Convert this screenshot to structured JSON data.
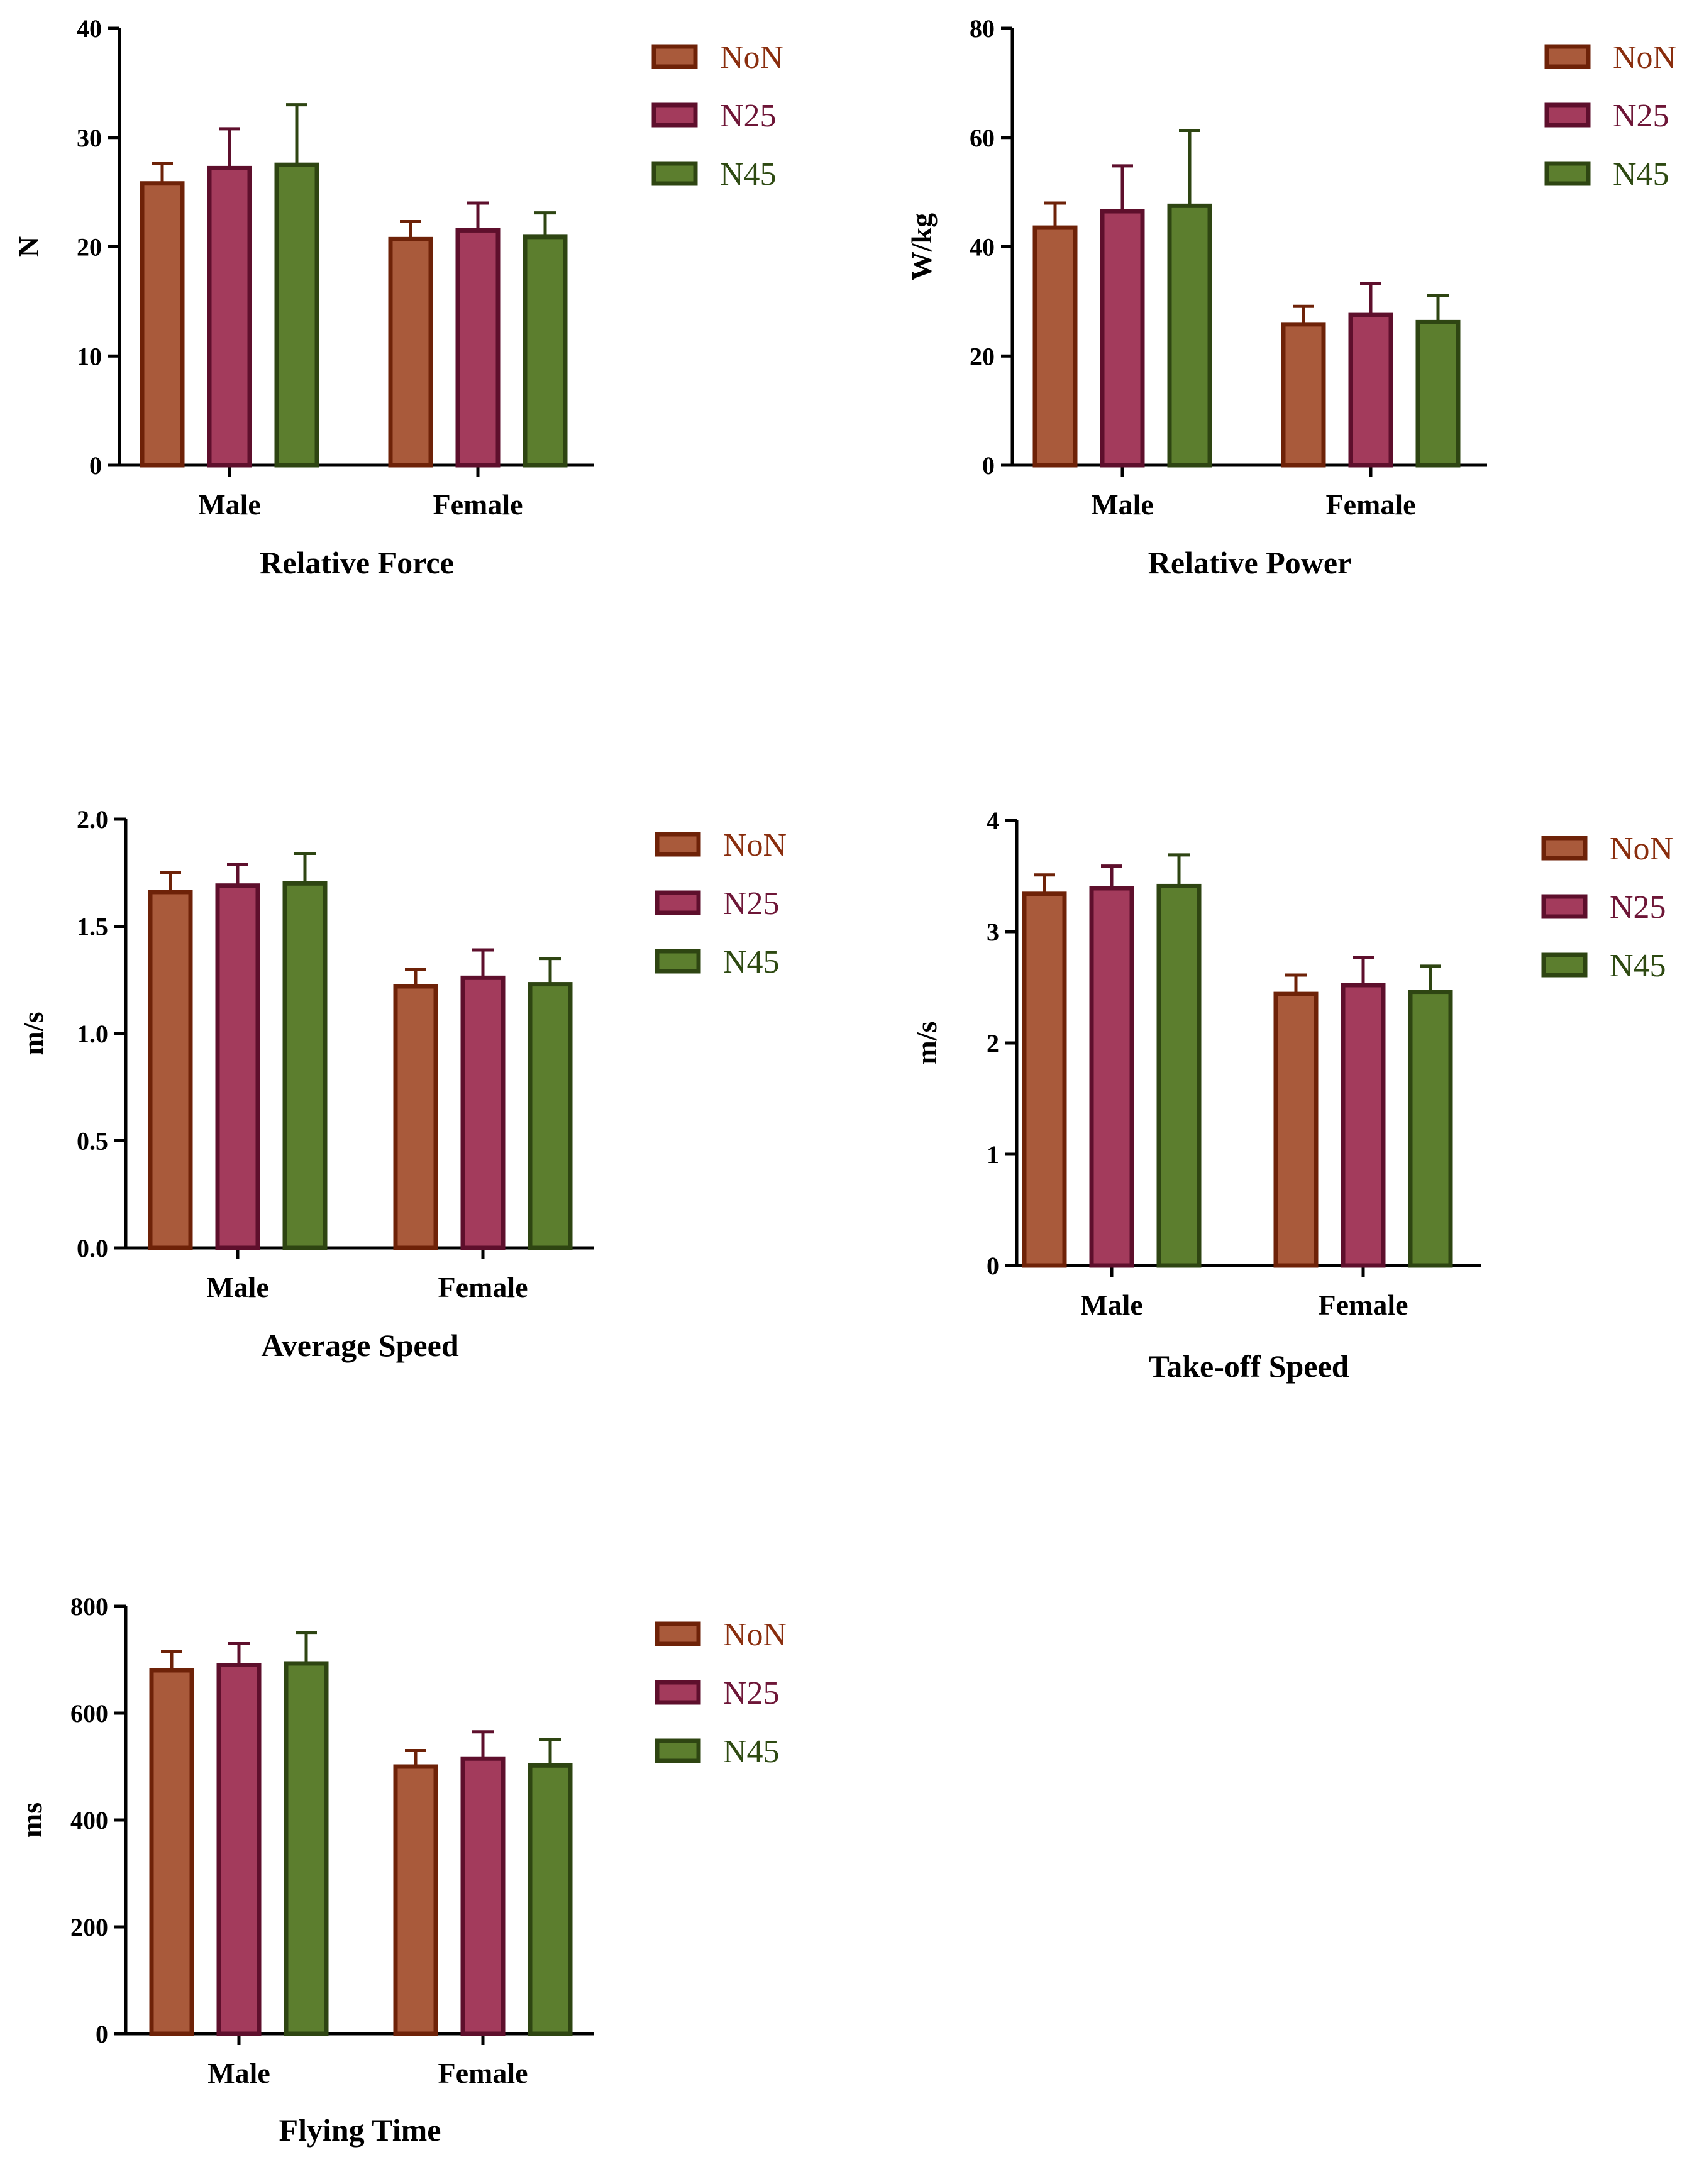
{
  "legend": [
    {
      "name": "NoN",
      "fill": "#A95A3B",
      "stroke": "#6E2208",
      "text_color": "#8A2E0E"
    },
    {
      "name": "N25",
      "fill": "#A33B5C",
      "stroke": "#5E0F2C",
      "text_color": "#6E1637"
    },
    {
      "name": "N45",
      "fill": "#5C7E2E",
      "stroke": "#2E4512",
      "text_color": "#2E4A12"
    }
  ],
  "chart_data": [
    {
      "type": "bar",
      "title": "Relative Force",
      "ylabel": "N",
      "categories": [
        "Male",
        "Female"
      ],
      "ylim": [
        0,
        40
      ],
      "yticks": [
        "0",
        "10",
        "20",
        "30",
        "40"
      ],
      "series": [
        {
          "name": "NoN",
          "values": [
            25.8,
            20.7
          ],
          "errors": [
            1.8,
            1.6
          ]
        },
        {
          "name": "N25",
          "values": [
            27.2,
            21.5
          ],
          "errors": [
            3.6,
            2.5
          ]
        },
        {
          "name": "N45",
          "values": [
            27.5,
            20.9
          ],
          "errors": [
            5.5,
            2.2
          ]
        }
      ]
    },
    {
      "type": "bar",
      "title": "Relative Power",
      "ylabel": "W/kg",
      "categories": [
        "Male",
        "Female"
      ],
      "ylim": [
        0,
        80
      ],
      "yticks": [
        "0",
        "20",
        "40",
        "60",
        "80"
      ],
      "series": [
        {
          "name": "NoN",
          "values": [
            43.5,
            25.8
          ],
          "errors": [
            4.5,
            3.3
          ]
        },
        {
          "name": "N25",
          "values": [
            46.5,
            27.5
          ],
          "errors": [
            8.3,
            5.8
          ]
        },
        {
          "name": "N45",
          "values": [
            47.5,
            26.2
          ],
          "errors": [
            13.8,
            4.9
          ]
        }
      ]
    },
    {
      "type": "bar",
      "title": "Average Speed",
      "ylabel": "m/s",
      "categories": [
        "Male",
        "Female"
      ],
      "ylim": [
        0,
        2.0
      ],
      "yticks": [
        "0.0",
        "0.5",
        "1.0",
        "1.5",
        "2.0"
      ],
      "series": [
        {
          "name": "NoN",
          "values": [
            1.66,
            1.22
          ],
          "errors": [
            0.09,
            0.08
          ]
        },
        {
          "name": "N25",
          "values": [
            1.69,
            1.26
          ],
          "errors": [
            0.1,
            0.13
          ]
        },
        {
          "name": "N45",
          "values": [
            1.7,
            1.23
          ],
          "errors": [
            0.14,
            0.12
          ]
        }
      ]
    },
    {
      "type": "bar",
      "title": "Take-off Speed",
      "ylabel": "m/s",
      "categories": [
        "Male",
        "Female"
      ],
      "ylim": [
        0,
        4
      ],
      "yticks": [
        "0",
        "1",
        "2",
        "3",
        "4"
      ],
      "series": [
        {
          "name": "NoN",
          "values": [
            3.34,
            2.44
          ],
          "errors": [
            0.17,
            0.17
          ]
        },
        {
          "name": "N25",
          "values": [
            3.39,
            2.52
          ],
          "errors": [
            0.2,
            0.25
          ]
        },
        {
          "name": "N45",
          "values": [
            3.41,
            2.46
          ],
          "errors": [
            0.28,
            0.23
          ]
        }
      ]
    },
    {
      "type": "bar",
      "title": "Flying Time",
      "ylabel": "ms",
      "categories": [
        "Male",
        "Female"
      ],
      "ylim": [
        0,
        800
      ],
      "yticks": [
        "0",
        "200",
        "400",
        "600",
        "800"
      ],
      "series": [
        {
          "name": "NoN",
          "values": [
            680,
            500
          ],
          "errors": [
            35,
            30
          ]
        },
        {
          "name": "N25",
          "values": [
            690,
            515
          ],
          "errors": [
            40,
            50
          ]
        },
        {
          "name": "N45",
          "values": [
            693,
            502
          ],
          "errors": [
            58,
            48
          ]
        }
      ]
    }
  ]
}
